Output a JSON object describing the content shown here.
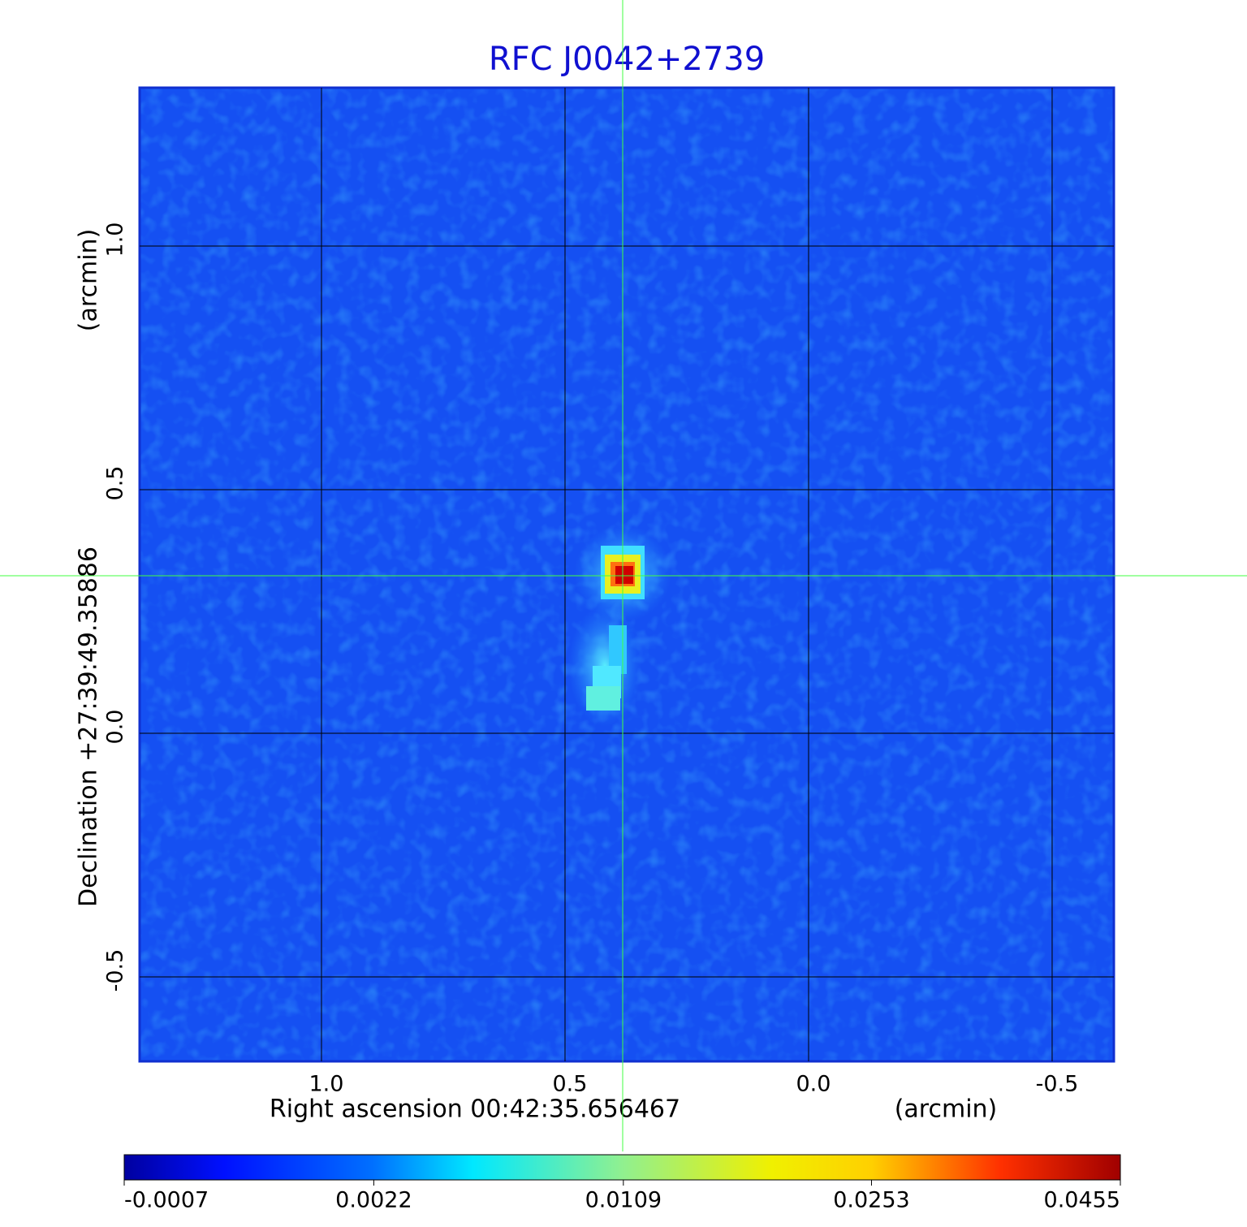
{
  "chart_data": {
    "type": "image",
    "title": "RFC J0042+2739",
    "x_label": "Right ascension  00:42:35.656467",
    "x_unit": "(arcmin)",
    "y_label": "Declination  +27:39:49.35886",
    "y_unit": "(arcmin)",
    "xlim": [
      1.3733,
      -0.6267
    ],
    "ylim": [
      -0.6733,
      1.325
    ],
    "xticks": [
      {
        "value": 1,
        "label": "1.0"
      },
      {
        "value": 0.5,
        "label": "0.5"
      },
      {
        "value": 0,
        "label": "0.0"
      },
      {
        "value": -0.5,
        "label": "-0.5"
      }
    ],
    "yticks": [
      {
        "value": 1,
        "label": "1.0"
      },
      {
        "value": 0.5,
        "label": "0.5"
      },
      {
        "value": 0,
        "label": "0.0"
      },
      {
        "value": -0.5,
        "label": "-0.5"
      }
    ],
    "grid": true,
    "colorbar_scale": "sqrt",
    "colorbar_lim": [
      -0.0007,
      0.0455
    ],
    "colorbar_ticks": [
      -0.0007,
      0.0022,
      0.0109,
      0.0253,
      0.0455
    ]
  }
}
